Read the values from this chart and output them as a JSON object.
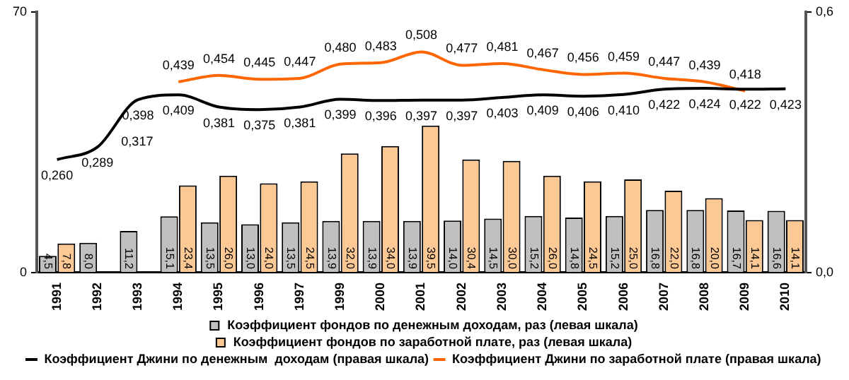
{
  "chart_data": {
    "type": "bar",
    "categories": [
      "1991",
      "1992",
      "1993",
      "1994",
      "1995",
      "1996",
      "1997",
      "1999",
      "2000",
      "2001",
      "2002",
      "2003",
      "2004",
      "2005",
      "2006",
      "2007",
      "2008",
      "2009",
      "2010"
    ],
    "series": [
      {
        "name": "Коэффициент фондов по денежным доходам, раз (левая шкала)",
        "color": "#c0c0c0",
        "values": [
          4.5,
          8.0,
          11.2,
          15.1,
          13.5,
          13.0,
          13.5,
          13.9,
          13.9,
          13.9,
          14.0,
          14.5,
          15.2,
          14.8,
          15.2,
          16.8,
          16.8,
          16.7,
          16.6
        ],
        "value_labels": [
          "4,5",
          "8,0",
          "11,2",
          "15,1",
          "13,5",
          "13,0",
          "13,5",
          "13,9",
          "13,9",
          "13,9",
          "14,0",
          "14,5",
          "15,2",
          "14,8",
          "15,2",
          "16,8",
          "16,8",
          "16,7",
          "16,6"
        ]
      },
      {
        "name": "Коэффициент фондов по заработной плате, раз (левая шкала)",
        "color": "#fcc894",
        "values": [
          7.8,
          null,
          null,
          23.4,
          26.0,
          24.0,
          24.5,
          32.0,
          34.0,
          39.5,
          30.4,
          30.0,
          26.0,
          24.5,
          25.0,
          22.0,
          20.0,
          14.1,
          14.1
        ],
        "value_labels": [
          "7,8",
          null,
          null,
          "23,4",
          "26,0",
          "24,0",
          "24,5",
          "32,0",
          "34,0",
          "39,5",
          "30,4",
          "30,0",
          "26,0",
          "24,5",
          "25,0",
          "22,0",
          "20,0",
          "14,1",
          "14,1"
        ]
      },
      {
        "name": "Коэффициент Джини по денежным  доходам (правая шкала)",
        "type": "line",
        "axis": "y2",
        "color": "#000000",
        "values": [
          0.26,
          0.289,
          0.398,
          0.409,
          0.381,
          0.375,
          0.381,
          0.399,
          0.396,
          0.397,
          0.397,
          0.403,
          0.409,
          0.406,
          0.41,
          0.422,
          0.424,
          0.422,
          0.423
        ],
        "value_labels": [
          "0,260",
          "0,289",
          "0,398",
          "0,409",
          "0,381",
          "0,375",
          "0,381",
          "0,399",
          "0,396",
          "0,397",
          "0,397",
          "0,403",
          "0,409",
          "0,406",
          "0,410",
          "0,422",
          "0,424",
          "0,422",
          "0,423"
        ]
      },
      {
        "name": "Коэффициент Джини по заработной плате (правая шкала)",
        "type": "line",
        "axis": "y2",
        "color": "#ff6600",
        "values": [
          null,
          null,
          null,
          0.439,
          0.454,
          0.445,
          0.447,
          0.48,
          0.483,
          0.508,
          0.477,
          0.481,
          0.467,
          0.456,
          0.459,
          0.447,
          0.439,
          0.418,
          null
        ],
        "value_labels": [
          null,
          null,
          null,
          "0,439",
          "0,454",
          "0,445",
          "0,447",
          "0,480",
          "0,483",
          "0,508",
          "0,477",
          "0,481",
          "0,467",
          "0,456",
          "0,459",
          "0,447",
          "0,439",
          "0,418",
          null
        ]
      }
    ],
    "annotations": [
      "0,317"
    ],
    "ylim": [
      0,
      70
    ],
    "yticks": [
      0,
      70
    ],
    "y2lim": [
      0,
      0.6
    ],
    "y2ticks": [
      {
        "value": 0,
        "label": "0,0"
      },
      {
        "value": 0.6,
        "label": "0,6"
      }
    ],
    "grid": false,
    "legend": "bottom",
    "marker": "none",
    "line_style": "solid"
  }
}
